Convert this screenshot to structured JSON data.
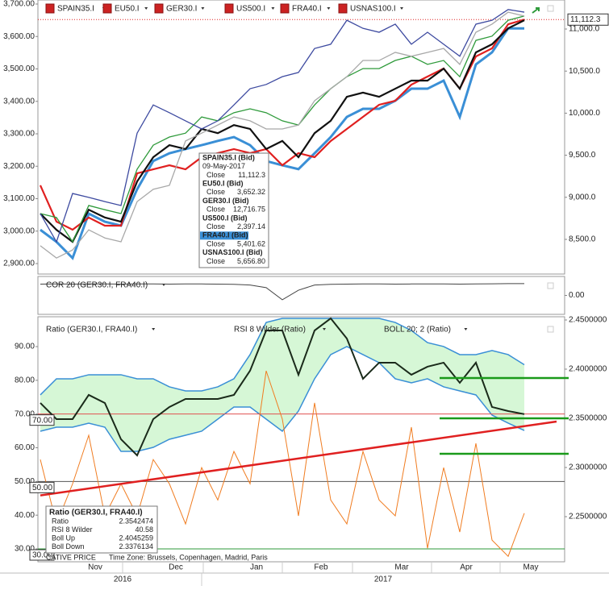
{
  "chart_data": [
    {
      "type": "line",
      "series": [
        {
          "name": "SPAIN35.I",
          "color": "#e02020",
          "axis": "y2",
          "values": [
            9142,
            8711,
            8615,
            8759,
            8663,
            8663,
            9285,
            9333,
            9381,
            9333,
            9477,
            9525,
            9573,
            9525,
            9573,
            9381,
            9525,
            9477,
            9669,
            9812,
            9956,
            10100,
            10147,
            10339,
            10435,
            10531,
            10291,
            10674,
            10770,
            11057,
            11112.3,
            null,
            null
          ]
        },
        {
          "name": "EU50.I",
          "color": "#111111",
          "values": [
            3054,
            3004,
            2967,
            3066,
            3042,
            3029,
            3153,
            3228,
            3265,
            3253,
            3315,
            3302,
            3327,
            3315,
            3253,
            3278,
            3228,
            3302,
            3340,
            3414,
            3427,
            3414,
            3439,
            3464,
            3464,
            3501,
            3439,
            3551,
            3576,
            3625,
            3650,
            null,
            null
          ]
        },
        {
          "name": "GER30.I",
          "color": "#2e9a3a",
          "values": [
            3054,
            3042,
            2967,
            3079,
            3066,
            3054,
            3191,
            3265,
            3290,
            3302,
            3352,
            3340,
            3365,
            3377,
            3365,
            3340,
            3327,
            3389,
            3439,
            3476,
            3501,
            3501,
            3526,
            3539,
            3514,
            3526,
            3476,
            3588,
            3601,
            3650,
            3663,
            null,
            null
          ]
        },
        {
          "name": "US500.I",
          "color": "#3d4aa0",
          "values": [
            3054,
            2967,
            3116,
            3104,
            3091,
            3079,
            3302,
            3389,
            3365,
            3340,
            3315,
            3340,
            3389,
            3439,
            3452,
            3476,
            3489,
            3563,
            3576,
            3650,
            3625,
            3613,
            3638,
            3576,
            3613,
            3576,
            3539,
            3638,
            3650,
            3683,
            3675,
            null,
            null
          ]
        },
        {
          "name": "FRA40.I",
          "color": "#3a8fd6",
          "values": [
            3004,
            2967,
            2917,
            3054,
            3029,
            3017,
            3129,
            3216,
            3240,
            3253,
            3265,
            3278,
            3290,
            3265,
            3216,
            3203,
            3191,
            3240,
            3290,
            3352,
            3377,
            3377,
            3402,
            3439,
            3439,
            3464,
            3352,
            3514,
            3551,
            3625,
            3625,
            null,
            null
          ]
        },
        {
          "name": "USNAS100.I",
          "color": "#a8a8a8",
          "values": [
            2955,
            2917,
            2942,
            3004,
            2979,
            2967,
            3091,
            3129,
            3141,
            3278,
            3302,
            3327,
            3352,
            3340,
            3315,
            3315,
            3327,
            3402,
            3439,
            3476,
            3526,
            3526,
            3551,
            3539,
            3551,
            3563,
            3514,
            3613,
            3638,
            3675,
            3663,
            null,
            null
          ]
        }
      ],
      "ylim": [
        2900,
        3700
      ],
      "yticks": [
        {
          "value": 3700,
          "label": "3,700.00"
        },
        {
          "value": 3600,
          "label": "3,600.00"
        },
        {
          "value": 3500,
          "label": "3,500.00"
        },
        {
          "value": 3400,
          "label": "3,400.00"
        },
        {
          "value": 3300,
          "label": "3,300.00"
        },
        {
          "value": 3200,
          "label": "3,200.00"
        },
        {
          "value": 3100,
          "label": "3,100.00"
        },
        {
          "value": 3000,
          "label": "3,000.00"
        },
        {
          "value": 2900,
          "label": "2,900.00"
        }
      ],
      "y2lim": [
        8212.5,
        11297
      ],
      "y2ticks": [
        {
          "value": 11000,
          "label": "11,000.0"
        },
        {
          "value": 10500,
          "label": "10,500.0"
        },
        {
          "value": 10000,
          "label": "10,000.0"
        },
        {
          "value": 9500,
          "label": "9,500.0"
        },
        {
          "value": 9000,
          "label": "9,000.0"
        },
        {
          "value": 8500,
          "label": "8,500.0"
        }
      ],
      "price_marker": {
        "value": 11112.3,
        "label": "11,112.3"
      },
      "tooltip": {
        "date": "09-May-2017",
        "close_label": "Close",
        "items": [
          {
            "name": "SPAIN35.I (Bid)",
            "close": "11,112.3",
            "color": "#e02020"
          },
          {
            "name": "EU50.I (Bid)",
            "close": "3,652.32",
            "color": "#111111"
          },
          {
            "name": "GER30.I (Bid)",
            "close": "12,716.75",
            "color": "#2e9a3a"
          },
          {
            "name": "US500.I (Bid)",
            "close": "2,397.14",
            "color": "#3d4aa0"
          },
          {
            "name": "FRA40.I (Bid)",
            "close": "5,401.62",
            "color": "#3a8fd6"
          },
          {
            "name": "USNAS100.I (Bid)",
            "close": "5,656.80",
            "color": "#a8a8a8"
          }
        ]
      }
    },
    {
      "type": "line",
      "title": "COR 20 (GER30.I, FRA40.I)",
      "color": "#444444",
      "values": [
        0.65,
        0.66,
        0.65,
        0.66,
        0.66,
        0.65,
        0.66,
        0.66,
        0.65,
        0.66,
        0.66,
        0.65,
        0.64,
        0.6,
        0.45,
        -0.25,
        0.3,
        0.6,
        0.64,
        0.65,
        0.66,
        0.66,
        0.65,
        0.66,
        0.66,
        0.66,
        0.65,
        0.66,
        0.67,
        0.68,
        0.68,
        null,
        null
      ],
      "ylim": [
        -1,
        1
      ],
      "yticks": [
        {
          "value": 0,
          "label": "0.00"
        }
      ]
    },
    {
      "type": "line",
      "categories": [
        null,
        null,
        null,
        "Nov",
        null,
        null,
        null,
        null,
        "Dec",
        null,
        null,
        null,
        null,
        "Jan",
        null,
        null,
        null,
        "Feb",
        null,
        null,
        null,
        null,
        "Mar",
        null,
        null,
        null,
        "Apr",
        null,
        null,
        null,
        "May",
        null,
        null
      ],
      "year_labels": [
        "2016",
        "2017"
      ],
      "series": [
        {
          "name": "Ratio (GER30.I, FRA40.I)",
          "color": "#1a2a1a",
          "axis": "y2",
          "values": [
            2.3656,
            2.3492,
            2.3492,
            2.3738,
            2.3656,
            2.3287,
            2.3123,
            2.3492,
            2.3615,
            2.3697,
            2.3697,
            2.3697,
            2.3738,
            2.3984,
            2.4393,
            2.4393,
            2.3943,
            2.4393,
            2.4516,
            2.4311,
            2.3902,
            2.4066,
            2.4066,
            2.3943,
            2.4025,
            2.4066,
            2.3861,
            2.4066,
            2.3615,
            2.3574,
            2.3542474,
            null,
            null
          ]
        },
        {
          "name": "RSI 8 Wilder (Ratio)",
          "color": "#f07c20",
          "values": [
            56.5,
            37.4,
            49.3,
            63.7,
            39.8,
            49.3,
            39.8,
            56.5,
            49.3,
            37.4,
            54.1,
            44.5,
            58.9,
            49.3,
            82.8,
            68.5,
            39.8,
            73.3,
            44.5,
            37.4,
            58.9,
            44.5,
            39.8,
            66.1,
            30.2,
            54.1,
            35,
            61.3,
            32.6,
            27.8,
            40.58,
            null,
            null
          ]
        }
      ],
      "bands": {
        "name": "BOLL 20; 2 (Ratio)",
        "color": "#3a8fd6",
        "fill": "#d6f7d6",
        "upper": [
          2.3738,
          2.3902,
          2.3902,
          2.3943,
          2.3943,
          2.3943,
          2.3902,
          2.3902,
          2.382,
          2.3779,
          2.3779,
          2.382,
          2.3902,
          2.4148,
          2.4475,
          2.4516,
          2.4516,
          2.4516,
          2.4516,
          2.4516,
          2.4516,
          2.4516,
          2.4475,
          2.4393,
          2.427,
          2.423,
          2.4148,
          2.4148,
          2.4189,
          2.4148,
          2.4045259,
          null,
          null
        ],
        "lower": [
          2.3369,
          2.341,
          2.341,
          2.3451,
          2.341,
          2.3164,
          2.3164,
          2.3205,
          2.3287,
          2.3328,
          2.3369,
          2.3492,
          2.3615,
          2.3615,
          2.3492,
          2.3369,
          2.3574,
          2.3902,
          2.4148,
          2.423,
          2.4148,
          2.4066,
          2.3902,
          2.3861,
          2.3902,
          2.382,
          2.3779,
          2.3738,
          2.3533,
          2.3451,
          2.3376134,
          null,
          null
        ]
      },
      "ylim": [
        30,
        90
      ],
      "yticks": [
        {
          "value": 90,
          "label": "90.00"
        },
        {
          "value": 80,
          "label": "80.00"
        },
        {
          "value": 70,
          "label": "70.00"
        },
        {
          "value": 60,
          "label": "60.00"
        },
        {
          "value": 50,
          "label": "50.00"
        },
        {
          "value": 40,
          "label": "40.00"
        },
        {
          "value": 30,
          "label": "30.00"
        }
      ],
      "y2lim": [
        2.25,
        2.45
      ],
      "y2ticks": [
        {
          "value": 2.45,
          "label": "2.4500000"
        },
        {
          "value": 2.4,
          "label": "2.4000000"
        },
        {
          "value": 2.35,
          "label": "2.3500000"
        },
        {
          "value": 2.3,
          "label": "2.3000000"
        },
        {
          "value": 2.25,
          "label": "2.2500000"
        }
      ],
      "levels": [
        {
          "value": 70,
          "label": "70.00",
          "color": "#e05050"
        },
        {
          "value": 50,
          "label": "50.00",
          "color": "#555555"
        },
        {
          "value": 30,
          "label": "30.00",
          "color": "#2e9a3a"
        }
      ],
      "trend_line": {
        "color": "#e02020",
        "values": [
          2.2716,
          2.3467
        ]
      },
      "level_lines": {
        "color": "#1a9a1a",
        "values": [
          2.391,
          2.35,
          2.3139
        ]
      },
      "info_box": {
        "title": "Ratio (GER30.I, FRA40.I)",
        "rows": [
          {
            "label": "Ratio",
            "value": "2.3542474",
            "color": "#111111"
          },
          {
            "label": "RSI 8 Wilder",
            "value": "40.58",
            "color": "#f07c20"
          },
          {
            "label": "Boll Up",
            "value": "2.4045259",
            "color": "#3a8fd6"
          },
          {
            "label": "Boll Down",
            "value": "2.3376134",
            "color": "#3a8fd6"
          }
        ]
      },
      "footer": {
        "price": "CATIVE PRICE",
        "time_zone": "Time Zone: Brussels, Copenhagen, Madrid, Paris"
      }
    }
  ]
}
